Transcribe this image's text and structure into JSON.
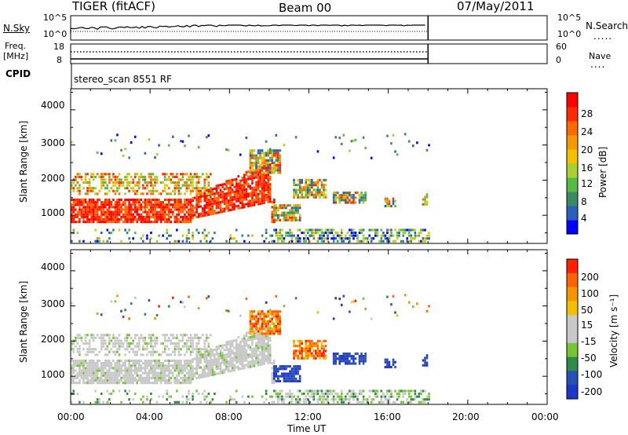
{
  "header": {
    "title": "TIGER (fitACF)",
    "beam": "Beam 00",
    "date": "07/May/2011"
  },
  "noise_panel": {
    "left_label": "N.Sky",
    "right_label": "N.Search",
    "left_ticks": [
      "10^5",
      "10^0"
    ],
    "right_ticks": [
      "10^5",
      "10^0"
    ]
  },
  "freq_panel": {
    "left_label_1": "Freq.",
    "left_label_2": "[MHz]",
    "left_ticks": [
      "18",
      "8"
    ],
    "right_label": "Nave",
    "right_ticks": [
      "60",
      "0"
    ]
  },
  "cpid": {
    "label": "CPID",
    "text": "stereo_scan 8551 RF"
  },
  "colors": {
    "power_scale": [
      "#0000ff",
      "#2b5fbf",
      "#3c8a64",
      "#55bb44",
      "#a6d12f",
      "#f2c200",
      "#f39a00",
      "#ff6a00",
      "#ff2a00",
      "#ff0000"
    ],
    "velocity_scale": [
      "#1e36c8",
      "#2850b4",
      "#2f8a4a",
      "#77c535",
      "#c8c8c8",
      "#c8c8c8",
      "#f2c000",
      "#f39600",
      "#ff6400",
      "#ff2000"
    ]
  },
  "chart_data": [
    {
      "type": "heatmap",
      "name": "power",
      "ylabel": "Slant Range [km]",
      "yticks": [
        "4000",
        "3000",
        "2000",
        "1000"
      ],
      "ylim": [
        200,
        4600
      ],
      "xlim": [
        "00:00",
        "24:00"
      ],
      "colorbar_label": "Power [dB]",
      "colorbar_ticks": [
        "28",
        "24",
        "20",
        "16",
        "12",
        "8",
        "4"
      ],
      "colorbar_range": [
        0,
        32
      ]
    },
    {
      "type": "heatmap",
      "name": "velocity",
      "ylabel": "Slant Range [km]",
      "yticks": [
        "4000",
        "3000",
        "2000",
        "1000"
      ],
      "ylim": [
        200,
        4600
      ],
      "xlim": [
        "00:00",
        "24:00"
      ],
      "colorbar_label": "Velocity [m s⁻¹]",
      "colorbar_ticks": [
        "200",
        "100",
        "50",
        "15",
        "-15",
        "-50",
        "-100",
        "-200"
      ]
    }
  ],
  "xaxis": {
    "label": "Time UT",
    "ticks": [
      "00:00",
      "04:00",
      "08:00",
      "12:00",
      "16:00",
      "20:00",
      "00:00"
    ]
  }
}
